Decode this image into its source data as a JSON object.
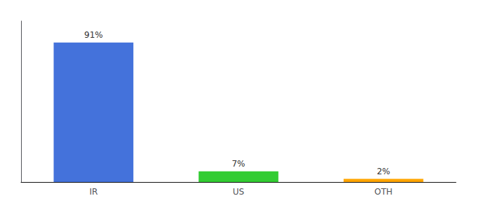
{
  "chart_data": {
    "type": "bar",
    "categories": [
      "IR",
      "US",
      "OTH"
    ],
    "values": [
      91,
      7,
      2
    ],
    "value_labels": [
      "91%",
      "7%",
      "2%"
    ],
    "colors": [
      "#4472db",
      "#33cc33",
      "#ffa500"
    ],
    "ylim": [
      0,
      105
    ],
    "tick_labels": "x",
    "data_labels": true,
    "grid": false
  }
}
